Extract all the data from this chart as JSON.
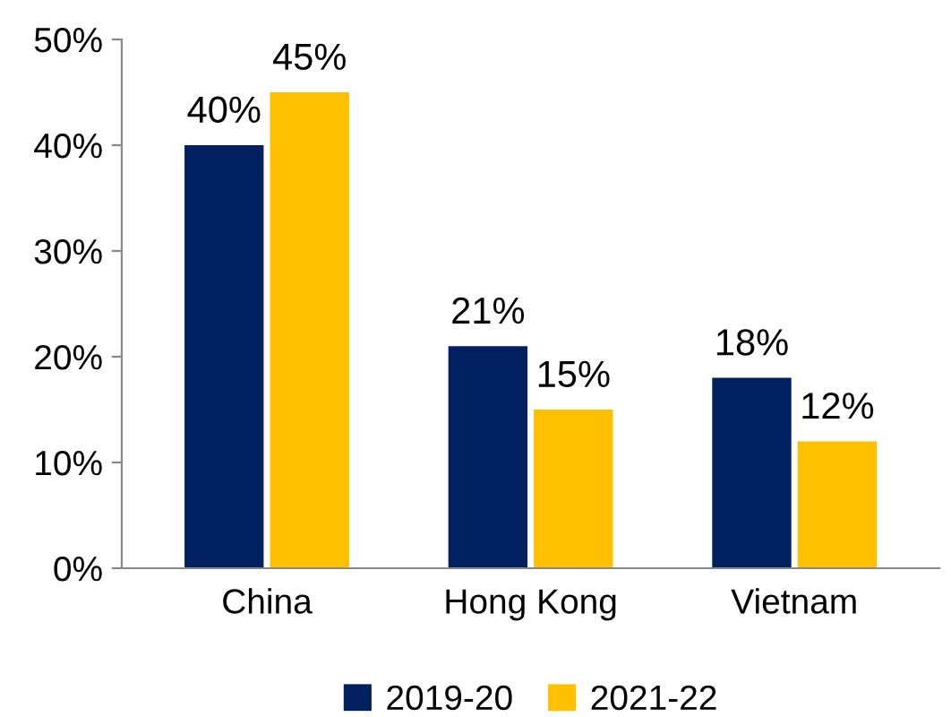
{
  "chart_data": {
    "type": "bar",
    "categories": [
      "China",
      "Hong Kong",
      "Vietnam"
    ],
    "series": [
      {
        "name": "2019-20",
        "color": "#002060",
        "values": [
          40,
          21,
          18
        ],
        "value_labels": [
          "40%",
          "21%",
          "18%"
        ]
      },
      {
        "name": "2021-22",
        "color": "#ffc000",
        "values": [
          45,
          15,
          12
        ],
        "value_labels": [
          "45%",
          "15%",
          "12%"
        ]
      }
    ],
    "ylim": [
      0,
      50
    ],
    "yticks": [
      {
        "value": 0,
        "label": "0%"
      },
      {
        "value": 10,
        "label": "10%"
      },
      {
        "value": 20,
        "label": "20%"
      },
      {
        "value": 30,
        "label": "30%"
      },
      {
        "value": 40,
        "label": "40%"
      },
      {
        "value": 50,
        "label": "50%"
      }
    ],
    "grid": false,
    "legend": "bottom"
  }
}
